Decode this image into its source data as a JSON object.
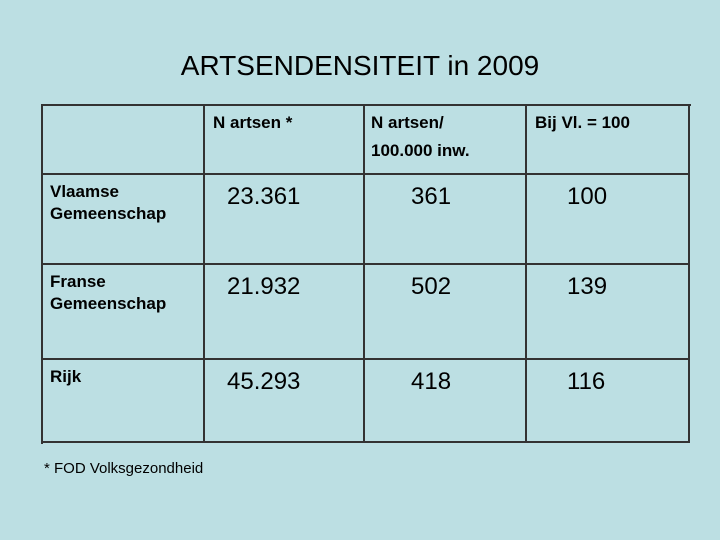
{
  "title": "ARTSENDENSITEIT in 2009",
  "table": {
    "header": [
      [
        ""
      ],
      [
        "N artsen *"
      ],
      [
        "N artsen/",
        "100.000 inw."
      ],
      [
        "Bij Vl. = 100"
      ]
    ],
    "rows": [
      [
        [
          "Vlaamse",
          "Gemeenschap"
        ],
        "23.361",
        "361",
        "100"
      ],
      [
        [
          "Franse",
          "Gemeenschap"
        ],
        "21.932",
        "502",
        "139"
      ],
      [
        [
          "Rijk"
        ],
        "45.293",
        "418",
        "116"
      ]
    ]
  },
  "footnote": "* FOD Volksgezondheid"
}
